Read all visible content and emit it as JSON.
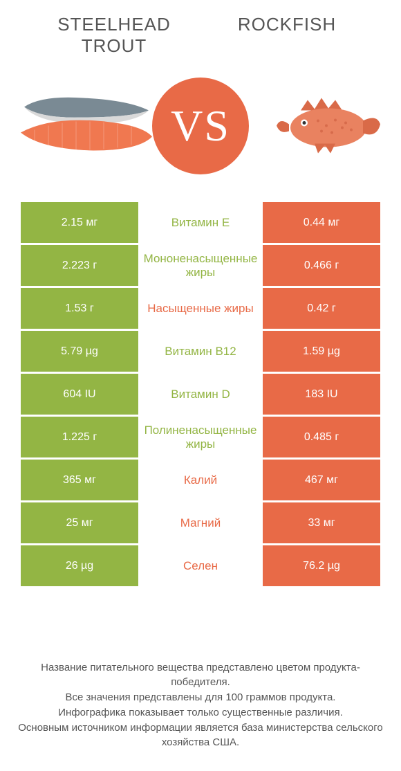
{
  "header": {
    "left_title": "STEELHEAD\nTROUT",
    "right_title": "ROCKFISH"
  },
  "vs": {
    "text": "VS",
    "circle_color": "#e86a47"
  },
  "colors": {
    "left_bar": "#93b544",
    "right_bar": "#e86a47",
    "left_label": "#93b544",
    "right_label": "#e86a47"
  },
  "rows": [
    {
      "left": "2.15 мг",
      "label": "Витамин E",
      "right": "0.44 мг",
      "winner": "left"
    },
    {
      "left": "2.223 г",
      "label": "Мононенасыщенные жиры",
      "right": "0.466 г",
      "winner": "left"
    },
    {
      "left": "1.53 г",
      "label": "Насыщенные жиры",
      "right": "0.42 г",
      "winner": "right"
    },
    {
      "left": "5.79 µg",
      "label": "Витамин B12",
      "right": "1.59 µg",
      "winner": "left"
    },
    {
      "left": "604 IU",
      "label": "Витамин D",
      "right": "183 IU",
      "winner": "left"
    },
    {
      "left": "1.225 г",
      "label": "Полиненасыщенные жиры",
      "right": "0.485 г",
      "winner": "left"
    },
    {
      "left": "365 мг",
      "label": "Калий",
      "right": "467 мг",
      "winner": "right"
    },
    {
      "left": "25 мг",
      "label": "Магний",
      "right": "33 мг",
      "winner": "right"
    },
    {
      "left": "26 µg",
      "label": "Селен",
      "right": "76.2 µg",
      "winner": "right"
    }
  ],
  "footer": {
    "line1": "Название питательного вещества представлено цветом продукта-победителя.",
    "line2": "Все значения представлены для 100 граммов продукта.",
    "line3": "Инфографика показывает только существенные различия.",
    "line4": "Основным источником информации является база министерства сельского хозяйства США."
  },
  "fish_svg": {
    "left_body_top": "#7a8a94",
    "left_body_bottom": "#d9d9d9",
    "left_fillet": "#f07850",
    "right_body": "#e98260",
    "right_fin": "#d96a48"
  }
}
